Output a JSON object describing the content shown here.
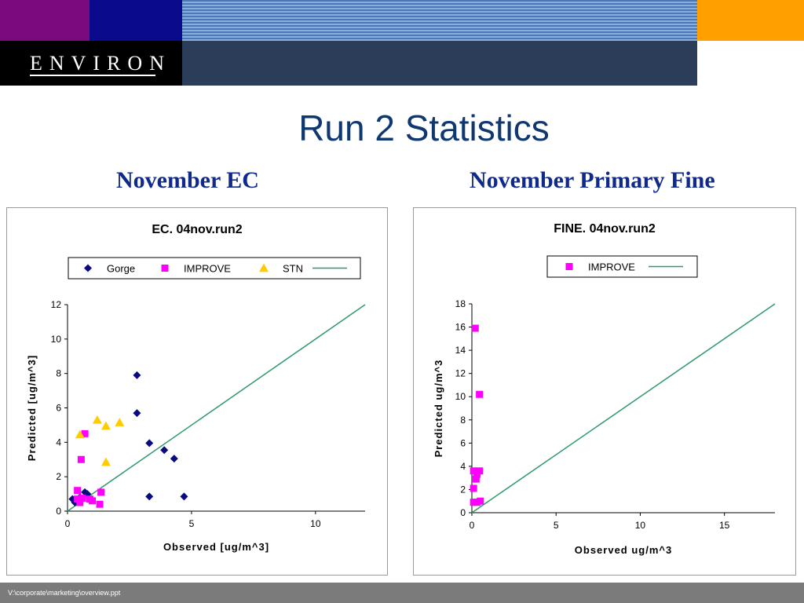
{
  "header": {
    "logo_text": "ENVIRON",
    "colors": {
      "purple": "#7a0a7e",
      "navy": "#0a0a8c",
      "orange": "#ffa000",
      "black": "#000000",
      "slate": "#2b3d58"
    }
  },
  "slide": {
    "title": "Run 2 Statistics",
    "title_color": "#0f3770",
    "subtitle_left": "November EC",
    "subtitle_right": "November Primary Fine",
    "subtitle_color": "#0f2a8c"
  },
  "footer": {
    "path": "V:\\corporate\\marketing\\overview.ppt",
    "color": "#7b7b7b"
  },
  "chart_data": [
    {
      "type": "scatter",
      "title": "EC.  04nov.run2",
      "xlabel": "Observed [ug/m^3]",
      "ylabel": "Predicted [ug/m^3]",
      "xlim": [
        0,
        12
      ],
      "ylim": [
        0,
        12
      ],
      "xticks": [
        0,
        5,
        10
      ],
      "yticks": [
        0,
        2,
        4,
        6,
        8,
        10,
        12
      ],
      "grid": false,
      "legend_position": "top",
      "series": [
        {
          "name": "Gorge",
          "marker": "diamond",
          "color": "#0a0a80",
          "points": [
            [
              2.8,
              7.9
            ],
            [
              2.8,
              5.7
            ],
            [
              3.3,
              3.95
            ],
            [
              3.9,
              3.55
            ],
            [
              4.3,
              3.05
            ],
            [
              3.3,
              0.85
            ],
            [
              4.7,
              0.85
            ],
            [
              0.7,
              1.1
            ],
            [
              0.8,
              1.0
            ],
            [
              0.5,
              0.8
            ],
            [
              0.2,
              0.7
            ],
            [
              0.3,
              0.5
            ]
          ]
        },
        {
          "name": "IMPROVE",
          "marker": "square",
          "color": "#ff00ff",
          "points": [
            [
              0.7,
              4.5
            ],
            [
              0.55,
              3.0
            ],
            [
              0.4,
              1.2
            ],
            [
              0.4,
              0.7
            ],
            [
              0.6,
              0.75
            ],
            [
              0.9,
              0.7
            ],
            [
              1.0,
              0.6
            ],
            [
              1.35,
              1.1
            ],
            [
              1.3,
              0.4
            ],
            [
              0.5,
              0.5
            ]
          ]
        },
        {
          "name": "STN",
          "marker": "triangle",
          "color": "#ffcc00",
          "points": [
            [
              0.5,
              4.45
            ],
            [
              1.2,
              5.3
            ],
            [
              1.55,
              4.95
            ],
            [
              2.1,
              5.15
            ],
            [
              1.55,
              2.85
            ]
          ]
        },
        {
          "name": "",
          "marker": "line",
          "color": "#2e9a6a",
          "points": [
            [
              0,
              0
            ],
            [
              12,
              12
            ]
          ]
        }
      ]
    },
    {
      "type": "scatter",
      "title": "FINE.  04nov.run2",
      "xlabel": "Observed ug/m^3",
      "ylabel": "Predicted ug/m^3",
      "xlim": [
        0,
        18
      ],
      "ylim": [
        0,
        18
      ],
      "xticks": [
        0,
        5,
        10,
        15
      ],
      "yticks": [
        0,
        2,
        4,
        6,
        8,
        10,
        12,
        14,
        16,
        18
      ],
      "grid": false,
      "legend_position": "top",
      "series": [
        {
          "name": "IMPROVE",
          "marker": "square",
          "color": "#ff00ff",
          "points": [
            [
              0.2,
              15.9
            ],
            [
              0.45,
              10.2
            ],
            [
              0.1,
              3.6
            ],
            [
              0.45,
              3.6
            ],
            [
              0.3,
              3.3
            ],
            [
              0.25,
              2.9
            ],
            [
              0.1,
              2.1
            ],
            [
              0.1,
              0.9
            ],
            [
              0.3,
              0.9
            ],
            [
              0.5,
              1.0
            ]
          ]
        },
        {
          "name": "",
          "marker": "line",
          "color": "#2e9a6a",
          "points": [
            [
              0,
              0
            ],
            [
              18,
              18
            ]
          ]
        }
      ]
    }
  ]
}
